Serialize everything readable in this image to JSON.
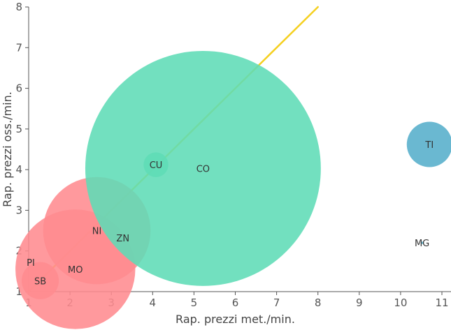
{
  "chart_data": {
    "type": "scatter",
    "title": "",
    "xlabel": "Rap. prezzi met./min.",
    "ylabel": "Rap. prezzi oss./min.",
    "xlim": [
      1,
      11
    ],
    "ylim": [
      1,
      8
    ],
    "x_ticks": [
      "1",
      "2",
      "3",
      "4",
      "5",
      "6",
      "7",
      "8",
      "9",
      "10",
      "11"
    ],
    "y_ticks": [
      "1",
      "2",
      "3",
      "4",
      "5",
      "6",
      "7",
      "8"
    ],
    "grid": false,
    "reference_line": {
      "from": [
        1,
        1
      ],
      "to": [
        8,
        8
      ],
      "color": "#f5d020"
    },
    "colors": {
      "red": "#ff8b8f",
      "green": "#5fdcb6",
      "blue": "#55aecb"
    },
    "points": [
      {
        "label": "PI",
        "x": 1.05,
        "y": 1.72,
        "size": 0.0,
        "color": "red"
      },
      {
        "label": "SB",
        "x": 1.28,
        "y": 1.27,
        "size": 0.45,
        "color": "red"
      },
      {
        "label": "MO",
        "x": 2.13,
        "y": 1.55,
        "size": 1.45,
        "color": "red"
      },
      {
        "label": "NI",
        "x": 2.65,
        "y": 2.5,
        "size": 1.3,
        "color": "red"
      },
      {
        "label": "ZN",
        "x": 3.28,
        "y": 2.32,
        "size": 0.0,
        "color": "red"
      },
      {
        "label": "CU",
        "x": 4.08,
        "y": 4.12,
        "size": 0.3,
        "color": "green"
      },
      {
        "label": "CO",
        "x": 5.22,
        "y": 4.03,
        "size": 2.85,
        "color": "green"
      },
      {
        "label": "MG",
        "x": 10.52,
        "y": 2.2,
        "size": 0.03,
        "color": "blue"
      },
      {
        "label": "TI",
        "x": 10.7,
        "y": 4.62,
        "size": 0.55,
        "color": "blue"
      }
    ]
  }
}
